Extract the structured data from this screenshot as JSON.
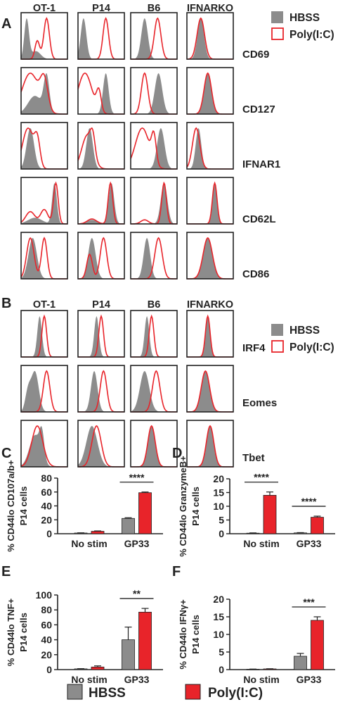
{
  "panels": {
    "A": {
      "letter": "A",
      "columns": [
        "OT-1",
        "P14",
        "B6",
        "IFNARKO"
      ],
      "rows": [
        "CD69",
        "CD127",
        "IFNAR1",
        "CD62L",
        "CD86"
      ],
      "legend": [
        "HBSS",
        "Poly(I:C)"
      ]
    },
    "B": {
      "letter": "B",
      "columns": [
        "OT-1",
        "P14",
        "B6",
        "IFNARKO"
      ],
      "rows": [
        "IRF4",
        "Eomes",
        "Tbet"
      ],
      "legend": [
        "HBSS",
        "Poly(I:C)"
      ]
    }
  },
  "colors": {
    "hbss": "#8c8c8c",
    "polyic": "#e8242a",
    "axis": "#222222"
  },
  "bottom_legend": [
    "HBSS",
    "Poly(I:C)"
  ],
  "chart_data": [
    {
      "type": "bar",
      "letter": "C",
      "ylabel_lines": [
        "% CD44lo CD107a/b+",
        "P14 cells"
      ],
      "categories": [
        "No stim",
        "GP33"
      ],
      "series": [
        {
          "name": "HBSS",
          "values": [
            1,
            22
          ],
          "errors": [
            0.3,
            1
          ]
        },
        {
          "name": "Poly(I:C)",
          "values": [
            3.5,
            59
          ],
          "errors": [
            0.5,
            1
          ]
        }
      ],
      "ylim": [
        0,
        80
      ],
      "yticks": [
        "0",
        "20",
        "40",
        "60",
        "80"
      ],
      "sig": [
        {
          "category": 1,
          "label": "****"
        }
      ]
    },
    {
      "type": "bar",
      "letter": "D",
      "ylabel_lines": [
        "% CD44lo GranzymeB+",
        "P14 cells"
      ],
      "categories": [
        "No stim",
        "GP33"
      ],
      "series": [
        {
          "name": "HBSS",
          "values": [
            0.2,
            0.3
          ],
          "errors": [
            0.1,
            0.1
          ]
        },
        {
          "name": "Poly(I:C)",
          "values": [
            14,
            6
          ],
          "errors": [
            1.2,
            0.4
          ]
        }
      ],
      "ylim": [
        0,
        20
      ],
      "yticks": [
        "0",
        "5",
        "10",
        "15",
        "20"
      ],
      "sig": [
        {
          "category": 0,
          "label": "****"
        },
        {
          "category": 1,
          "label": "****"
        }
      ]
    },
    {
      "type": "bar",
      "letter": "E",
      "ylabel_lines": [
        "% CD44lo TNF+",
        "P14 cells"
      ],
      "categories": [
        "No stim",
        "GP33"
      ],
      "series": [
        {
          "name": "HBSS",
          "values": [
            1,
            40
          ],
          "errors": [
            0.3,
            17
          ]
        },
        {
          "name": "Poly(I:C)",
          "values": [
            3.5,
            77
          ],
          "errors": [
            1.5,
            5
          ]
        }
      ],
      "ylim": [
        0,
        100
      ],
      "yticks": [
        "0",
        "20",
        "40",
        "60",
        "80",
        "100"
      ],
      "sig": [
        {
          "category": 1,
          "label": "**"
        }
      ]
    },
    {
      "type": "bar",
      "letter": "F",
      "ylabel_lines": [
        "% CD44lo IFNγ+",
        "P14 cells"
      ],
      "categories": [
        "No stim",
        "GP33"
      ],
      "series": [
        {
          "name": "HBSS",
          "values": [
            0.1,
            3.8
          ],
          "errors": [
            0.05,
            0.8
          ]
        },
        {
          "name": "Poly(I:C)",
          "values": [
            0.2,
            14
          ],
          "errors": [
            0.05,
            1
          ]
        }
      ],
      "ylim": [
        0,
        20
      ],
      "yticks": [
        "0",
        "5",
        "10",
        "15",
        "20"
      ],
      "sig": [
        {
          "category": 1,
          "label": "***"
        }
      ]
    }
  ]
}
